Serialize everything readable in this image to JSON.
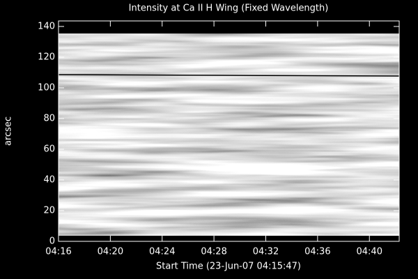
{
  "chart_data": {
    "type": "image",
    "title": "Intensity at Ca II H Wing (Fixed Wavelength)",
    "x_label": "Start Time (23-Jun-07 04:15:47)",
    "y_label": "arcsec",
    "xlim": [
      16,
      42.3
    ],
    "xticks": [
      {
        "value": 16,
        "label": "04:16"
      },
      {
        "value": 20,
        "label": "04:20"
      },
      {
        "value": 24,
        "label": "04:24"
      },
      {
        "value": 28,
        "label": "04:28"
      },
      {
        "value": 32,
        "label": "04:32"
      },
      {
        "value": 36,
        "label": "04:36"
      },
      {
        "value": 40,
        "label": "04:40"
      }
    ],
    "ylim": [
      0,
      143.6
    ],
    "yticks": [
      0,
      20,
      40,
      60,
      80,
      100,
      120,
      140
    ]
  }
}
